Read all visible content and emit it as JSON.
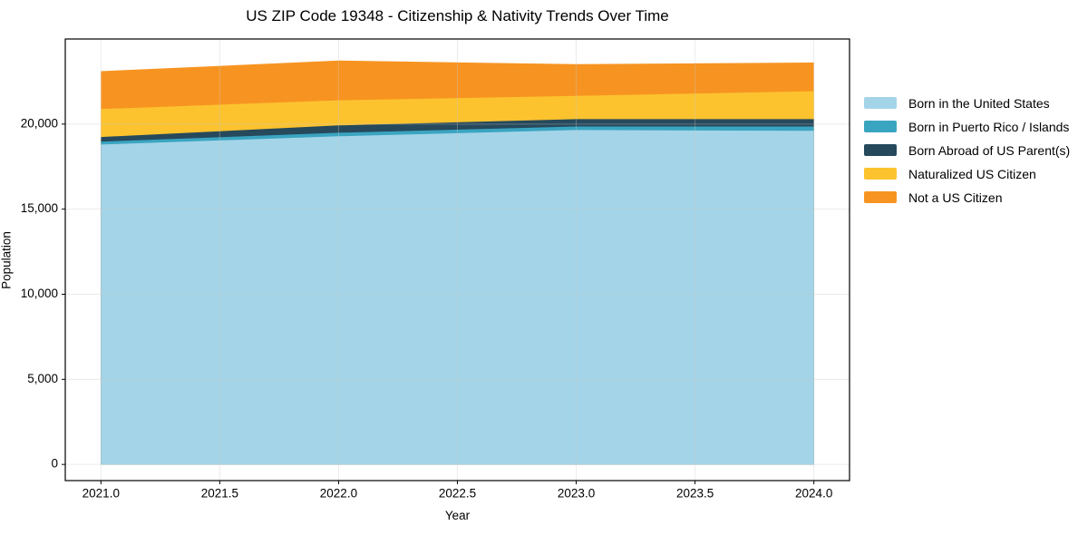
{
  "chart_data": {
    "type": "area",
    "stacked": true,
    "title": "US ZIP Code 19348 - Citizenship & Nativity Trends Over Time",
    "xlabel": "Year",
    "ylabel": "Population",
    "x": [
      2021,
      2022,
      2023,
      2024
    ],
    "series": [
      {
        "name": "Born in the United States",
        "color": "#a4d4e8",
        "values": [
          18800,
          19280,
          19650,
          19600
        ]
      },
      {
        "name": "Born in Puerto Rico / Islands",
        "color": "#3aa5c1",
        "values": [
          170,
          210,
          210,
          260
        ]
      },
      {
        "name": "Born Abroad of US Parent(s)",
        "color": "#26495c",
        "values": [
          270,
          430,
          430,
          430
        ]
      },
      {
        "name": "Naturalized US Citizen",
        "color": "#fcc32f",
        "values": [
          1640,
          1480,
          1370,
          1640
        ]
      },
      {
        "name": "Not a US Citizen",
        "color": "#f79421",
        "values": [
          2230,
          2330,
          1860,
          1690
        ]
      }
    ],
    "totals": [
      23110,
      23730,
      23520,
      23620
    ],
    "xlim": [
      2020.85,
      2024.15
    ],
    "ylim": [
      -950,
      25000
    ],
    "xticks": {
      "values": [
        2021.0,
        2021.5,
        2022.0,
        2022.5,
        2023.0,
        2023.5,
        2024.0
      ],
      "labels": [
        "2021.0",
        "2021.5",
        "2022.0",
        "2022.5",
        "2023.0",
        "2023.5",
        "2024.0"
      ]
    },
    "yticks": {
      "values": [
        0,
        5000,
        10000,
        15000,
        20000
      ],
      "labels": [
        "0",
        "5,000",
        "10,000",
        "15,000",
        "20,000"
      ]
    },
    "grid": true,
    "legend_position": "right-outside",
    "colors": {
      "background": "#ffffff",
      "grid": "#c8c8c8",
      "spine": "#000000",
      "text": "#000000"
    }
  }
}
